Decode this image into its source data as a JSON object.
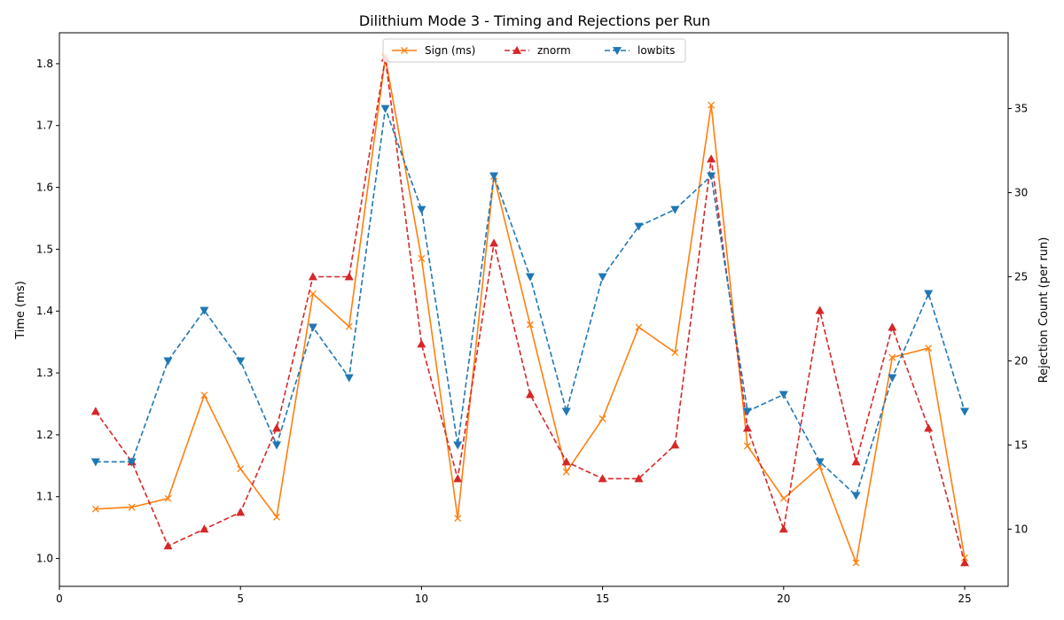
{
  "chart_data": {
    "type": "line",
    "title": "Dilithium Mode 3 - Timing and Rejections per Run",
    "xlabel": "",
    "ylabel": "Time (ms)",
    "y2label": "Rejection Count (per run)",
    "xlim": [
      0,
      26.2
    ],
    "ylim": [
      0.955,
      1.85
    ],
    "y2lim": [
      6.6,
      39.5
    ],
    "xticks": [
      0,
      5,
      10,
      15,
      20,
      25
    ],
    "yticks": [
      1.0,
      1.1,
      1.2,
      1.3,
      1.4,
      1.5,
      1.6,
      1.7,
      1.8
    ],
    "yticklabels": [
      "1.0",
      "1.1",
      "1.2",
      "1.3",
      "1.4",
      "1.5",
      "1.6",
      "1.7",
      "1.8"
    ],
    "y2ticks": [
      10,
      15,
      20,
      25,
      30,
      35
    ],
    "grid": false,
    "legend_position": "top-center",
    "x": [
      1,
      2,
      3,
      4,
      5,
      6,
      7,
      8,
      9,
      10,
      11,
      12,
      13,
      14,
      15,
      16,
      17,
      18,
      19,
      20,
      21,
      22,
      23,
      24,
      25
    ],
    "series": [
      {
        "name": "Sign (ms)",
        "axis": "left",
        "color": "#ff7f0e",
        "linestyle": "solid",
        "marker": "x",
        "values": [
          1.08,
          1.083,
          1.097,
          1.264,
          1.145,
          1.067,
          1.428,
          1.375,
          1.81,
          1.485,
          1.065,
          1.618,
          1.378,
          1.14,
          1.226,
          1.374,
          1.333,
          1.733,
          1.182,
          1.097,
          1.148,
          0.993,
          1.325,
          1.34,
          1.001
        ]
      },
      {
        "name": "znorm",
        "axis": "right",
        "color": "#d62728",
        "linestyle": "dashed",
        "marker": "triangle-up",
        "values": [
          17,
          14,
          9,
          10,
          11,
          16,
          25,
          25,
          38,
          21,
          13,
          27,
          18,
          14,
          13,
          13,
          15,
          32,
          16,
          10,
          23,
          14,
          22,
          16,
          8
        ]
      },
      {
        "name": "lowbits",
        "axis": "right",
        "color": "#1f77b4",
        "linestyle": "dashed",
        "marker": "triangle-down",
        "values": [
          14,
          14,
          20,
          23,
          20,
          15,
          22,
          19,
          35,
          29,
          15,
          31,
          25,
          17,
          25,
          28,
          29,
          31,
          17,
          18,
          14,
          12,
          19,
          24,
          17
        ]
      }
    ]
  }
}
